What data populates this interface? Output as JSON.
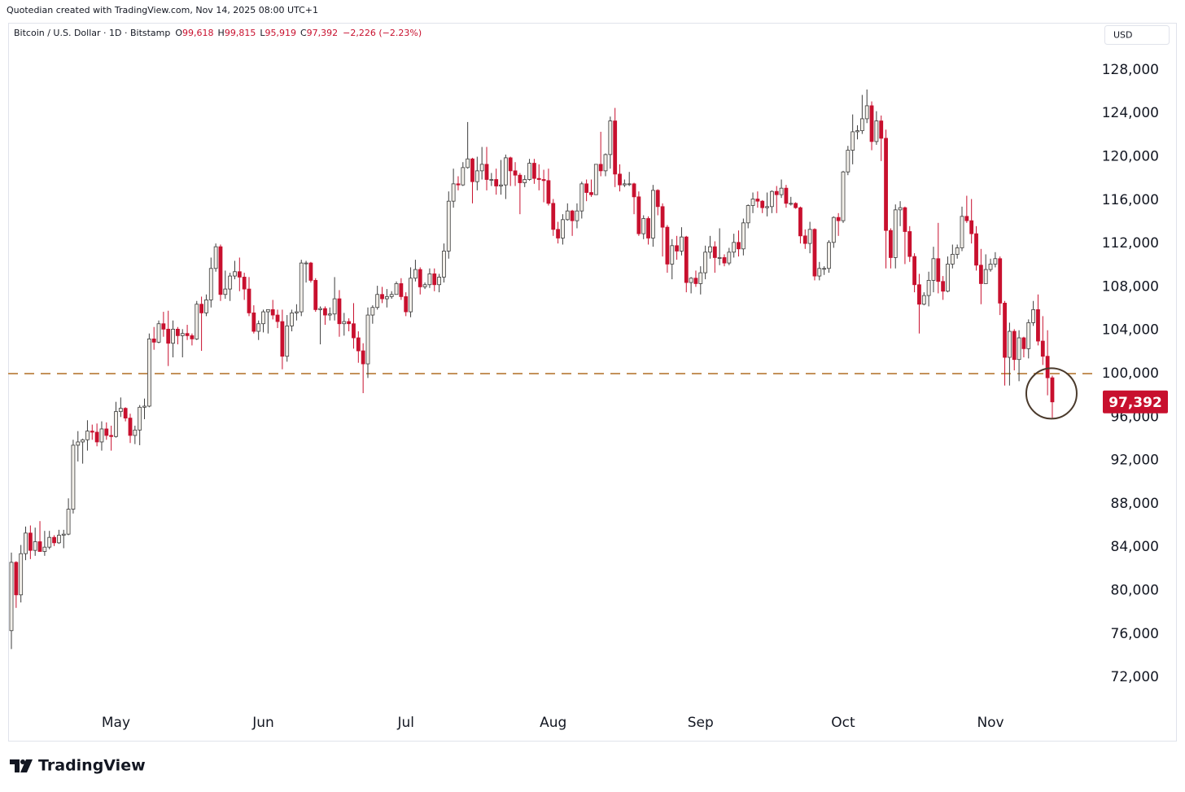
{
  "header": {
    "credit": "Quotedian created with TradingView.com, Nov 14, 2025 08:00 UTC+1"
  },
  "footer": {
    "brand": "TradingView"
  },
  "chart_data": {
    "type": "candlestick",
    "legend": {
      "symbol": "Bitcoin / U.S. Dollar · 1D · Bitstamp",
      "ohlc": [
        {
          "key": "O",
          "value": "99,618"
        },
        {
          "key": "H",
          "value": "99,815"
        },
        {
          "key": "L",
          "value": "95,919"
        },
        {
          "key": "C",
          "value": "97,392"
        }
      ],
      "change": "−2,226 (−2.23%)"
    },
    "currency": "USD",
    "last_price_label": "97,392",
    "up_color": "#f2efe9",
    "up_border": "#3c3c3c",
    "down_color": "#c8102e",
    "hline": {
      "value": 100000,
      "color": "#c4925a"
    },
    "categories": [
      null,
      null,
      null,
      null,
      null,
      null,
      null,
      null,
      null,
      null,
      null,
      null,
      null,
      null,
      null,
      null,
      null,
      null,
      null,
      null,
      null,
      null,
      "May",
      null,
      null,
      null,
      null,
      null,
      null,
      null,
      null,
      null,
      null,
      null,
      null,
      null,
      null,
      null,
      null,
      null,
      null,
      null,
      null,
      null,
      null,
      null,
      null,
      null,
      null,
      null,
      null,
      null,
      null,
      "Jun",
      null,
      null,
      null,
      null,
      null,
      null,
      null,
      null,
      null,
      null,
      null,
      null,
      null,
      null,
      null,
      null,
      null,
      null,
      null,
      null,
      null,
      null,
      null,
      null,
      null,
      null,
      null,
      null,
      null,
      "Jul",
      null,
      null,
      null,
      null,
      null,
      null,
      null,
      null,
      null,
      null,
      null,
      null,
      null,
      null,
      null,
      null,
      null,
      null,
      null,
      null,
      null,
      null,
      null,
      null,
      null,
      null,
      null,
      null,
      null,
      null,
      "Aug",
      null,
      null,
      null,
      null,
      null,
      null,
      null,
      null,
      null,
      null,
      null,
      null,
      null,
      null,
      null,
      null,
      null,
      null,
      null,
      null,
      null,
      null,
      null,
      null,
      null,
      null,
      null,
      null,
      null,
      null,
      "Sep",
      null,
      null,
      null,
      null,
      null,
      null,
      null,
      null,
      null,
      null,
      null,
      null,
      null,
      null,
      null,
      null,
      null,
      null,
      null,
      null,
      null,
      null,
      null,
      null,
      null,
      null,
      null,
      null,
      null,
      "Oct",
      null,
      null,
      null,
      null,
      null,
      null,
      null,
      null,
      null,
      null,
      null,
      null,
      null,
      null,
      null,
      null,
      null,
      null,
      null,
      null,
      null,
      null,
      null,
      null,
      null,
      null,
      null,
      null,
      null,
      null,
      "Nov",
      null,
      null,
      null,
      null,
      null,
      null,
      null,
      null,
      null,
      null,
      null,
      null,
      null
    ],
    "open": [
      76300,
      82600,
      79600,
      83400,
      85300,
      83700,
      84500,
      83600,
      84000,
      84900,
      84400,
      85100,
      85200,
      87500,
      93400,
      93700,
      93900,
      94700,
      94600,
      93700,
      94900,
      94300,
      94200,
      96500,
      96800,
      95900,
      94300,
      94800,
      96900,
      97000,
      103200,
      102900,
      104600,
      104100,
      102800,
      104100,
      103500,
      103700,
      103500,
      103200,
      106400,
      105600,
      106800,
      109700,
      111700,
      107300,
      107800,
      109000,
      109400,
      108900,
      107800,
      105600,
      103900,
      104600,
      105700,
      105900,
      105400,
      104800,
      101600,
      104400,
      105600,
      105700,
      110200,
      110200,
      108600,
      105900,
      106000,
      105400,
      105500,
      106900,
      104600,
      104800,
      104600,
      103300,
      102100,
      100900,
      105400,
      106100,
      107300,
      106900,
      107100,
      107300,
      108300,
      107100,
      105700,
      108800,
      109600,
      108000,
      108200,
      109200,
      108200,
      108900,
      111300,
      115900,
      117500,
      117400,
      119000,
      119800,
      117700,
      118700,
      119300,
      117900,
      117900,
      117300,
      117400,
      119900,
      118700,
      118300,
      117600,
      117900,
      119400,
      118000,
      117900,
      117800,
      115700,
      113300,
      112500,
      114200,
      115000,
      114100,
      115000,
      117500,
      116700,
      116500,
      119300,
      118700,
      120200,
      123300,
      118400,
      117400,
      117500,
      117500,
      116300,
      112900,
      114300,
      112500,
      116900,
      115400,
      113500,
      110100,
      111800,
      111300,
      112600,
      108400,
      108800,
      108300,
      109300,
      111200,
      111700,
      110700,
      110700,
      110200,
      111200,
      112100,
      111500,
      113900,
      115500,
      116100,
      115900,
      115300,
      115400,
      116800,
      116500,
      117100,
      115700,
      115700,
      115300,
      112700,
      112000,
      113300,
      109000,
      109700,
      109700,
      112100,
      114400,
      114100,
      118600,
      120600,
      122300,
      122400,
      123500,
      124700,
      121400,
      123300,
      121700,
      113200,
      110700,
      115100,
      115300,
      113100,
      110800,
      108200,
      106400,
      107200,
      108600,
      110600,
      108500,
      107600,
      110100,
      111000,
      111600,
      114500,
      114100,
      112900,
      110000,
      108300,
      109600,
      110100,
      110600,
      106500,
      101500,
      103900,
      101300,
      103300,
      102300,
      104700,
      105900,
      103000,
      101600,
      99618
    ],
    "high": [
      83500,
      82700,
      84200,
      85900,
      86000,
      85800,
      86400,
      85500,
      85500,
      85100,
      85600,
      85600,
      88500,
      93900,
      94700,
      94000,
      95700,
      95300,
      95400,
      95600,
      95500,
      95200,
      97400,
      97800,
      96900,
      96300,
      95200,
      97100,
      97700,
      103700,
      104300,
      104900,
      105700,
      105800,
      104900,
      104300,
      104100,
      104500,
      103700,
      106700,
      107100,
      107300,
      110700,
      112000,
      111900,
      109500,
      109300,
      110400,
      110700,
      109300,
      108900,
      106300,
      104900,
      105900,
      105900,
      106800,
      105900,
      105900,
      105400,
      105900,
      106400,
      110500,
      110400,
      110300,
      108800,
      106200,
      106200,
      106100,
      108900,
      107700,
      105600,
      105100,
      106500,
      103900,
      102800,
      106100,
      106300,
      108100,
      108000,
      107800,
      107600,
      108500,
      108800,
      107500,
      109800,
      110500,
      109800,
      108400,
      109700,
      109700,
      109200,
      112000,
      116800,
      118900,
      118200,
      119500,
      123200,
      119900,
      120000,
      120900,
      120900,
      118500,
      118900,
      119700,
      120200,
      120000,
      119500,
      118500,
      118300,
      119800,
      119800,
      119300,
      118800,
      118900,
      116100,
      114000,
      114700,
      115700,
      115100,
      115700,
      117700,
      117900,
      117900,
      119300,
      122300,
      120300,
      123700,
      124500,
      119300,
      117900,
      118600,
      117600,
      116800,
      114600,
      114500,
      117400,
      117000,
      115700,
      113700,
      112400,
      112700,
      113500,
      112700,
      108900,
      109500,
      109900,
      111800,
      112700,
      112200,
      113400,
      111000,
      111600,
      112900,
      113200,
      114300,
      115600,
      116700,
      116800,
      116000,
      116700,
      116900,
      117300,
      117900,
      117400,
      116300,
      115800,
      115400,
      113300,
      114000,
      113400,
      110300,
      109900,
      112300,
      114500,
      114800,
      118700,
      121000,
      123900,
      122900,
      125700,
      126200,
      125100,
      124200,
      123800,
      122500,
      113400,
      115600,
      115900,
      115400,
      113600,
      111100,
      109200,
      107500,
      109400,
      111700,
      113900,
      109000,
      110800,
      111900,
      111900,
      115400,
      116400,
      116100,
      113600,
      111500,
      111000,
      110600,
      111200,
      110800,
      106700,
      104700,
      104100,
      104000,
      103400,
      105000,
      106700,
      107300,
      105300,
      104000,
      99815
    ],
    "low": [
      74600,
      78400,
      78900,
      82800,
      82900,
      83200,
      83600,
      83200,
      83800,
      84100,
      84300,
      83900,
      85100,
      87100,
      91900,
      91700,
      92900,
      93900,
      93300,
      92900,
      93900,
      92900,
      94100,
      96000,
      95600,
      93600,
      93500,
      93400,
      95800,
      96900,
      102200,
      102800,
      103400,
      100700,
      101500,
      102700,
      101500,
      103100,
      102600,
      103100,
      102100,
      105300,
      106100,
      109400,
      106700,
      106900,
      106700,
      108700,
      107600,
      106800,
      105300,
      103700,
      103100,
      103800,
      103700,
      105000,
      104200,
      100400,
      101100,
      103900,
      104900,
      105300,
      108400,
      108400,
      105700,
      102700,
      104500,
      104900,
      104900,
      103400,
      103500,
      103900,
      102300,
      101000,
      98200,
      99600,
      104600,
      105900,
      106500,
      106100,
      106900,
      107300,
      106800,
      105300,
      105200,
      108500,
      107300,
      107800,
      107900,
      107600,
      107500,
      108400,
      110600,
      115300,
      116900,
      117300,
      118900,
      115700,
      116900,
      117900,
      116900,
      117300,
      116500,
      116500,
      116100,
      117300,
      117300,
      114700,
      117200,
      117800,
      117500,
      116900,
      115800,
      115500,
      112700,
      112000,
      111900,
      114100,
      112700,
      113400,
      114300,
      115900,
      116300,
      116500,
      118200,
      118200,
      118900,
      117200,
      116800,
      117200,
      117300,
      114700,
      112700,
      112400,
      111900,
      111700,
      114600,
      110800,
      109300,
      108700,
      110500,
      110900,
      107500,
      107400,
      108000,
      107300,
      108700,
      110600,
      109300,
      110000,
      109900,
      110000,
      110700,
      110800,
      110900,
      113400,
      114800,
      115300,
      114800,
      114500,
      114800,
      114800,
      116200,
      115300,
      115500,
      115200,
      112000,
      111500,
      111100,
      108600,
      108600,
      109100,
      109300,
      111600,
      112700,
      113900,
      118300,
      119300,
      121600,
      122100,
      123100,
      120600,
      121100,
      119600,
      109700,
      109700,
      109700,
      113600,
      110100,
      110300,
      107500,
      103700,
      106300,
      106200,
      107500,
      107400,
      106800,
      107500,
      109700,
      110600,
      111300,
      113900,
      112000,
      109500,
      106400,
      108300,
      109400,
      109800,
      105400,
      98900,
      98900,
      100300,
      99300,
      101500,
      101400,
      104400,
      102600,
      100800,
      98000,
      95919
    ],
    "close": [
      82600,
      79600,
      83400,
      85300,
      83700,
      84500,
      83600,
      84000,
      84900,
      84400,
      85100,
      85200,
      87500,
      93400,
      93700,
      93900,
      94700,
      94600,
      93700,
      94900,
      94300,
      94200,
      96500,
      96800,
      95900,
      94300,
      94800,
      96900,
      97000,
      103200,
      102900,
      104600,
      104100,
      102800,
      104100,
      103500,
      103700,
      103500,
      103200,
      106400,
      105600,
      106800,
      109700,
      111700,
      107300,
      107800,
      109000,
      109400,
      108900,
      107800,
      105600,
      103900,
      104600,
      105700,
      105900,
      105400,
      104800,
      101600,
      104400,
      105600,
      105700,
      110200,
      110200,
      108600,
      105900,
      106000,
      105400,
      105500,
      106900,
      104600,
      104800,
      104600,
      103300,
      102100,
      100900,
      105400,
      106100,
      107300,
      106900,
      107100,
      107300,
      108300,
      107100,
      105700,
      108800,
      109600,
      108000,
      108200,
      109200,
      108200,
      108900,
      111300,
      115900,
      117500,
      117400,
      119000,
      119800,
      117700,
      118700,
      119300,
      117900,
      117900,
      117300,
      117400,
      119900,
      118700,
      118300,
      117600,
      117900,
      119400,
      118000,
      117900,
      117800,
      115700,
      113300,
      112500,
      114200,
      115000,
      114100,
      115000,
      117500,
      116700,
      116500,
      119300,
      118700,
      120200,
      123300,
      118400,
      117400,
      117500,
      117500,
      116300,
      112900,
      114300,
      112500,
      116900,
      115400,
      113500,
      110100,
      111800,
      111300,
      112600,
      108400,
      108800,
      108300,
      109300,
      111200,
      111700,
      110700,
      110700,
      110200,
      111200,
      112100,
      111500,
      113900,
      115500,
      116100,
      115900,
      115300,
      115400,
      116800,
      116500,
      117100,
      115700,
      115700,
      115300,
      112700,
      112000,
      113300,
      109000,
      109700,
      109700,
      112100,
      114400,
      114100,
      118600,
      120600,
      122300,
      122400,
      123500,
      124700,
      121400,
      123300,
      121700,
      113200,
      110700,
      115100,
      115300,
      113100,
      110800,
      108200,
      106400,
      107200,
      108600,
      110600,
      108500,
      107600,
      110100,
      111000,
      111600,
      114500,
      114100,
      112900,
      110000,
      108300,
      109600,
      110100,
      110600,
      106500,
      101500,
      103900,
      101300,
      103300,
      102300,
      104700,
      105900,
      103000,
      101600,
      99618,
      97392
    ],
    "ylim": [
      66150,
      132350
    ],
    "yticks": [
      {
        "value": 72000,
        "label": "72,000"
      },
      {
        "value": 76000,
        "label": "76,000"
      },
      {
        "value": 80000,
        "label": "80,000"
      },
      {
        "value": 84000,
        "label": "84,000"
      },
      {
        "value": 88000,
        "label": "88,000"
      },
      {
        "value": 92000,
        "label": "92,000"
      },
      {
        "value": 96000,
        "label": "96,000"
      },
      {
        "value": 100000,
        "label": "100,000"
      },
      {
        "value": 104000,
        "label": "104,000"
      },
      {
        "value": 108000,
        "label": "108,000"
      },
      {
        "value": 112000,
        "label": "112,000"
      },
      {
        "value": 116000,
        "label": "116,000"
      },
      {
        "value": 120000,
        "label": "120,000"
      },
      {
        "value": 124000,
        "label": "124,000"
      },
      {
        "value": 128000,
        "label": "128,000"
      }
    ],
    "grid": false
  }
}
